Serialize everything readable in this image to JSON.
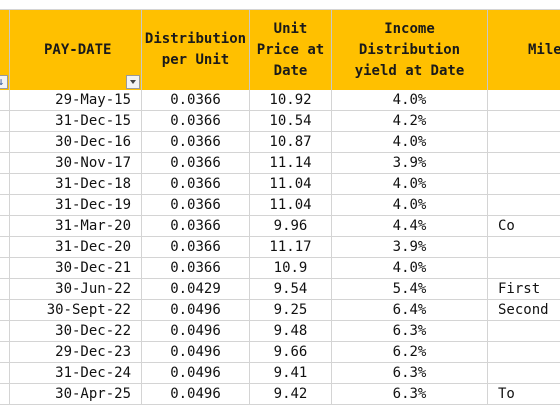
{
  "headers": {
    "pay_date": "PAY-DATE",
    "distribution": "Distribution\nper Unit",
    "unit_price": "Unit\nPrice at\nDate",
    "income_yield": "Income\nDistribution\nyield at Date",
    "milestone": "Mile"
  },
  "rows": [
    {
      "date": "29-May-15",
      "dist": "0.0366",
      "price": "10.92",
      "yield": "4.0%",
      "mile": ""
    },
    {
      "date": "31-Dec-15",
      "dist": "0.0366",
      "price": "10.54",
      "yield": "4.2%",
      "mile": ""
    },
    {
      "date": "30-Dec-16",
      "dist": "0.0366",
      "price": "10.87",
      "yield": "4.0%",
      "mile": ""
    },
    {
      "date": "30-Nov-17",
      "dist": "0.0366",
      "price": "11.14",
      "yield": "3.9%",
      "mile": ""
    },
    {
      "date": "31-Dec-18",
      "dist": "0.0366",
      "price": "11.04",
      "yield": "4.0%",
      "mile": ""
    },
    {
      "date": "31-Dec-19",
      "dist": "0.0366",
      "price": "11.04",
      "yield": "4.0%",
      "mile": ""
    },
    {
      "date": "31-Mar-20",
      "dist": "0.0366",
      "price": "9.96",
      "yield": "4.4%",
      "mile": "Co"
    },
    {
      "date": "31-Dec-20",
      "dist": "0.0366",
      "price": "11.17",
      "yield": "3.9%",
      "mile": ""
    },
    {
      "date": "30-Dec-21",
      "dist": "0.0366",
      "price": "10.9",
      "yield": "4.0%",
      "mile": ""
    },
    {
      "date": "30-Jun-22",
      "dist": "0.0429",
      "price": "9.54",
      "yield": "5.4%",
      "mile": "First"
    },
    {
      "date": "30-Sept-22",
      "dist": "0.0496",
      "price": "9.25",
      "yield": "6.4%",
      "mile": "Second"
    },
    {
      "date": "30-Dec-22",
      "dist": "0.0496",
      "price": "9.48",
      "yield": "6.3%",
      "mile": ""
    },
    {
      "date": "29-Dec-23",
      "dist": "0.0496",
      "price": "9.66",
      "yield": "6.2%",
      "mile": ""
    },
    {
      "date": "31-Dec-24",
      "dist": "0.0496",
      "price": "9.41",
      "yield": "6.3%",
      "mile": ""
    },
    {
      "date": "30-Apr-25",
      "dist": "0.0496",
      "price": "9.42",
      "yield": "6.3%",
      "mile": "To"
    }
  ]
}
